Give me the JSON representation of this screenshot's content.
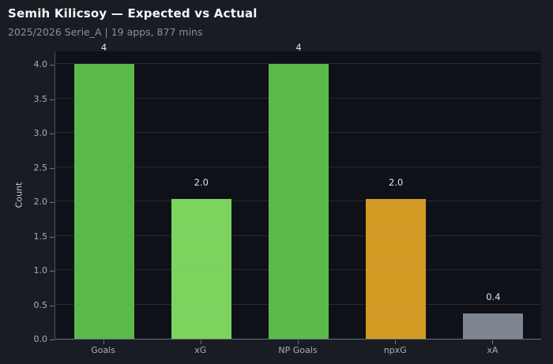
{
  "header": {
    "title": "Semih Kilicsoy — Expected vs Actual",
    "subtitle": "2025/2026 Serie_A | 19 apps, 877 mins"
  },
  "chart_data": {
    "type": "bar",
    "title": "Semih Kilicsoy — Expected vs Actual",
    "subtitle": "2025/2026 Serie_A | 19 apps, 877 mins",
    "categories": [
      "Goals",
      "xG",
      "NP Goals",
      "npxG",
      "xA"
    ],
    "values": [
      4,
      2.04,
      4,
      2.04,
      0.37
    ],
    "bar_labels": [
      "4",
      "2.0",
      "4",
      "2.0",
      "0.4"
    ],
    "bar_colors": [
      "#5ABA4A",
      "#7CD35E",
      "#5ABA4A",
      "#D49A24",
      "#7D8591"
    ],
    "xlabel": "",
    "ylabel": "Count",
    "ylim": [
      0,
      4.2
    ],
    "yticks": [
      0.0,
      0.5,
      1.0,
      1.5,
      2.0,
      2.5,
      3.0,
      3.5,
      4.0
    ],
    "ytick_labels": [
      "0.0",
      "0.5",
      "1.0",
      "1.5",
      "2.0",
      "2.5",
      "3.0",
      "3.5",
      "4.0"
    ],
    "grid": "horizontal-over-bars",
    "legend": "none"
  },
  "colors": {
    "figure_bg": "#191C23",
    "plot_bg": "#0E1117",
    "gridline": "rgba(150,156,168,0.18)",
    "spine": "#6B7280",
    "title_text": "#F5F6F8",
    "subtitle_text": "#8A8F98",
    "tick_label_text": "#A9AEB6",
    "bar_value_text": "#E3E5E9"
  }
}
